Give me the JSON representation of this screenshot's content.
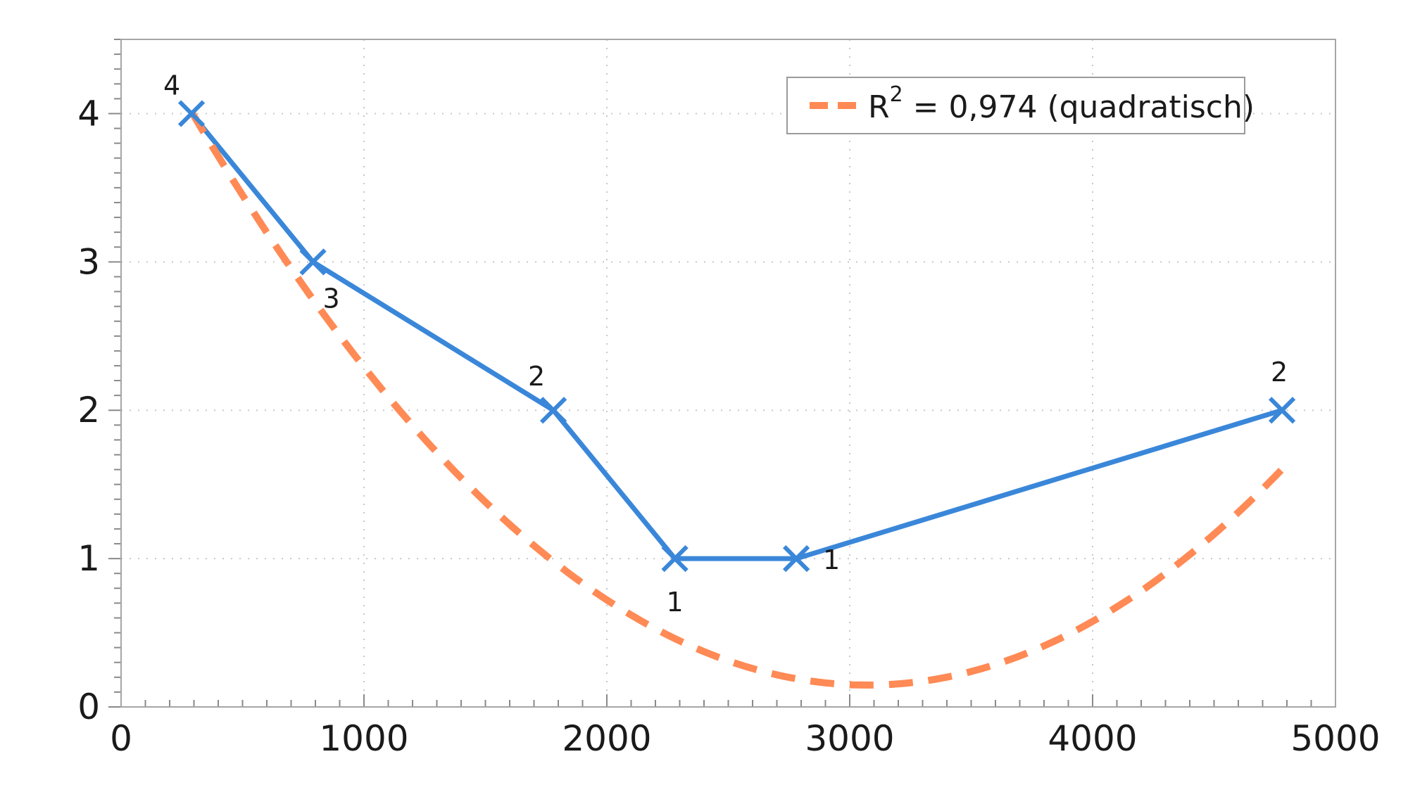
{
  "chart_data": {
    "type": "line",
    "xlim": [
      0,
      5000
    ],
    "ylim": [
      0,
      4.5
    ],
    "x_ticks": [
      0,
      1000,
      2000,
      3000,
      4000,
      5000
    ],
    "y_ticks": [
      0,
      1,
      2,
      3,
      4
    ],
    "x_tick_labels": [
      "0",
      "1000",
      "2000",
      "3000",
      "4000",
      "5000"
    ],
    "y_tick_labels": [
      "0",
      "1",
      "2",
      "3",
      "4"
    ],
    "grid": "dotted",
    "series": [
      {
        "x": [
          290,
          790,
          1780,
          2280,
          2780,
          4780
        ],
        "values": [
          4,
          3,
          2,
          1,
          1,
          2
        ],
        "labels": [
          "4",
          "3",
          "2",
          "1",
          "1",
          "2"
        ],
        "color": "#3a87d9",
        "marker": "x"
      }
    ],
    "fit": {
      "type": "quadratic",
      "coeffs": [
        4.859,
        -0.003067,
        4.991e-07
      ],
      "x_range": [
        290,
        4780
      ],
      "color": "#ff8a55",
      "style": "dashed"
    },
    "legend": {
      "placement": "top-right",
      "r_text": "R",
      "sup_text": "2",
      "rest_text": " = 0,974 (quadratisch)"
    }
  }
}
